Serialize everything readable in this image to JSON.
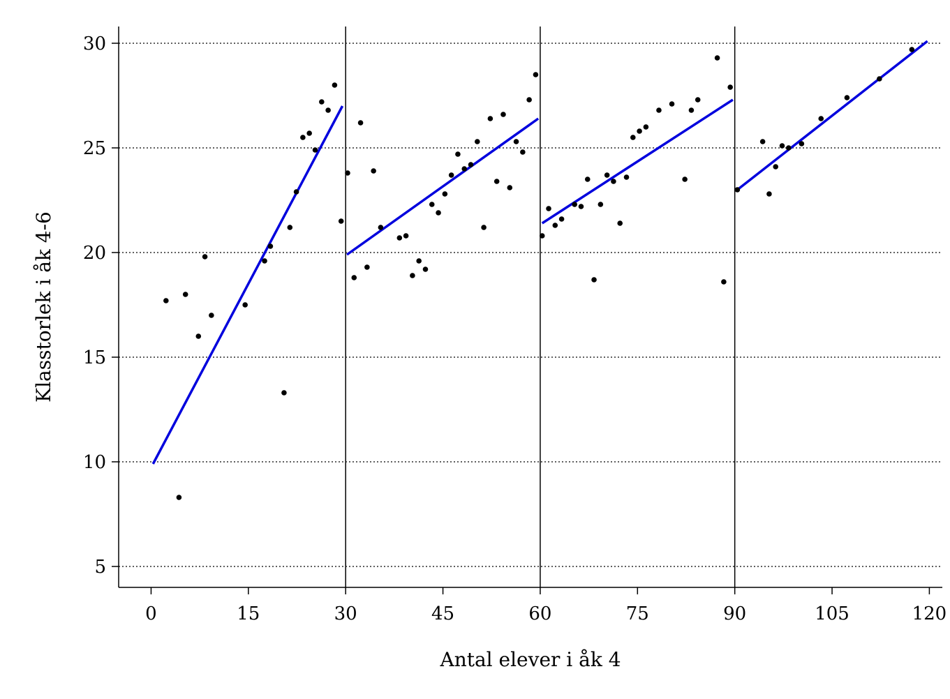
{
  "chart_data": {
    "type": "scatter",
    "title": "",
    "xlabel": "Antal elever i åk 4",
    "ylabel": "Klasstorlek i åk 4-6",
    "xlim": [
      -5,
      122
    ],
    "ylim": [
      4,
      30.8
    ],
    "xticks": [
      0,
      15,
      30,
      45,
      60,
      75,
      90,
      105,
      120
    ],
    "yticks": [
      5,
      10,
      15,
      20,
      25,
      30
    ],
    "grid": "horizontal dotted",
    "vertical_lines": [
      30,
      60,
      90
    ],
    "series": [
      {
        "kind": "points",
        "color": "#000000",
        "points": [
          [
            2.3,
            17.7
          ],
          [
            4.3,
            8.3
          ],
          [
            5.3,
            18.0
          ],
          [
            7.3,
            16.0
          ],
          [
            8.3,
            19.8
          ],
          [
            9.3,
            17.0
          ],
          [
            14.5,
            17.5
          ],
          [
            17.5,
            19.6
          ],
          [
            18.4,
            20.3
          ],
          [
            20.5,
            13.3
          ],
          [
            21.4,
            21.2
          ],
          [
            22.4,
            22.9
          ],
          [
            23.4,
            25.5
          ],
          [
            24.4,
            25.7
          ],
          [
            25.3,
            24.9
          ],
          [
            26.3,
            27.2
          ],
          [
            27.3,
            26.8
          ],
          [
            28.3,
            28.0
          ],
          [
            29.3,
            21.5
          ],
          [
            30.3,
            23.8
          ],
          [
            31.3,
            18.8
          ],
          [
            32.3,
            26.2
          ],
          [
            33.3,
            19.3
          ],
          [
            34.3,
            23.9
          ],
          [
            35.4,
            21.2
          ],
          [
            38.3,
            20.7
          ],
          [
            39.3,
            20.8
          ],
          [
            40.3,
            18.9
          ],
          [
            41.3,
            19.6
          ],
          [
            42.3,
            19.2
          ],
          [
            43.3,
            22.3
          ],
          [
            44.3,
            21.9
          ],
          [
            45.3,
            22.8
          ],
          [
            46.3,
            23.7
          ],
          [
            47.3,
            24.7
          ],
          [
            48.3,
            24.0
          ],
          [
            49.3,
            24.2
          ],
          [
            50.3,
            25.3
          ],
          [
            51.3,
            21.2
          ],
          [
            52.3,
            26.4
          ],
          [
            53.3,
            23.4
          ],
          [
            54.3,
            26.6
          ],
          [
            55.3,
            23.1
          ],
          [
            56.3,
            25.3
          ],
          [
            57.3,
            24.8
          ],
          [
            58.3,
            27.3
          ],
          [
            59.3,
            28.5
          ],
          [
            60.3,
            20.8
          ],
          [
            61.3,
            22.1
          ],
          [
            62.3,
            21.3
          ],
          [
            63.3,
            21.6
          ],
          [
            65.3,
            22.3
          ],
          [
            66.3,
            22.2
          ],
          [
            67.3,
            23.5
          ],
          [
            68.3,
            18.7
          ],
          [
            69.3,
            22.3
          ],
          [
            70.3,
            23.7
          ],
          [
            71.3,
            23.4
          ],
          [
            72.3,
            21.4
          ],
          [
            73.3,
            23.6
          ],
          [
            74.3,
            25.5
          ],
          [
            75.3,
            25.8
          ],
          [
            76.3,
            26.0
          ],
          [
            78.3,
            26.8
          ],
          [
            80.3,
            27.1
          ],
          [
            82.3,
            23.5
          ],
          [
            83.3,
            26.8
          ],
          [
            84.3,
            27.3
          ],
          [
            87.3,
            29.3
          ],
          [
            88.3,
            18.6
          ],
          [
            89.3,
            27.9
          ],
          [
            90.4,
            23.0
          ],
          [
            94.3,
            25.3
          ],
          [
            95.3,
            22.8
          ],
          [
            96.3,
            24.1
          ],
          [
            97.3,
            25.1
          ],
          [
            98.3,
            25.0
          ],
          [
            100.3,
            25.2
          ],
          [
            103.3,
            26.4
          ],
          [
            107.3,
            27.4
          ],
          [
            112.3,
            28.3
          ],
          [
            117.3,
            29.7
          ]
        ]
      },
      {
        "kind": "fit-lines",
        "color": "#0000dd",
        "segments": [
          [
            [
              0.3,
              9.9
            ],
            [
              29.5,
              27.0
            ]
          ],
          [
            [
              30.2,
              19.9
            ],
            [
              59.7,
              26.4
            ]
          ],
          [
            [
              60.3,
              21.4
            ],
            [
              89.7,
              27.3
            ]
          ],
          [
            [
              90.4,
              23.0
            ],
            [
              119.7,
              30.1
            ]
          ]
        ]
      }
    ]
  }
}
